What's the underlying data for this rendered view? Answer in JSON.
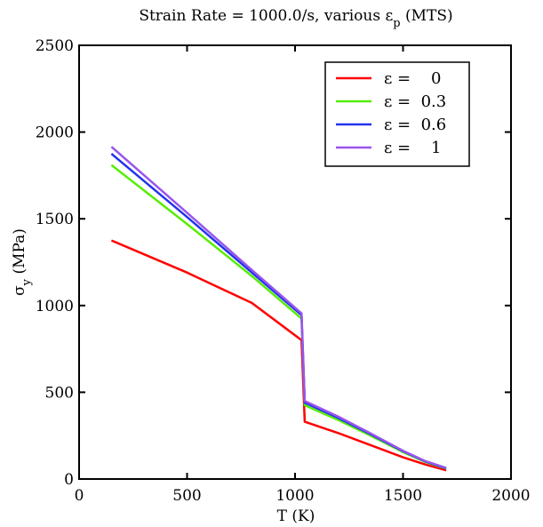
{
  "chart_data": {
    "type": "line",
    "title": {
      "main": "Strain Rate = 1000.0/s, various ε",
      "sub": "p",
      "suffix": " (MTS)"
    },
    "xlabel": "T (K)",
    "ylabel": {
      "main": "σ",
      "sub": "y",
      "suffix": " (MPa)"
    },
    "xlim": [
      0,
      2000
    ],
    "ylim": [
      0,
      2500
    ],
    "xticks": [
      {
        "value": 0,
        "label": "0"
      },
      {
        "value": 500,
        "label": "500"
      },
      {
        "value": 1000,
        "label": "1000"
      },
      {
        "value": 1500,
        "label": "1500"
      },
      {
        "value": 2000,
        "label": "2000"
      }
    ],
    "yticks": [
      {
        "value": 0,
        "label": "0"
      },
      {
        "value": 500,
        "label": "500"
      },
      {
        "value": 1000,
        "label": "1000"
      },
      {
        "value": 1500,
        "label": "1500"
      },
      {
        "value": 2000,
        "label": "2000"
      },
      {
        "value": 2500,
        "label": "2500"
      }
    ],
    "grid": false,
    "legend_position": "top-right",
    "series": [
      {
        "name": "ε =    0",
        "color": "#ff0000",
        "points": [
          [
            150,
            1375
          ],
          [
            500,
            1190
          ],
          [
            800,
            1015
          ],
          [
            1030,
            800
          ],
          [
            1045,
            330
          ],
          [
            1200,
            265
          ],
          [
            1350,
            195
          ],
          [
            1500,
            125
          ],
          [
            1600,
            85
          ],
          [
            1700,
            50
          ]
        ]
      },
      {
        "name": "ε =  0.3",
        "color": "#55ee00",
        "points": [
          [
            150,
            1810
          ],
          [
            500,
            1470
          ],
          [
            800,
            1170
          ],
          [
            1030,
            925
          ],
          [
            1045,
            425
          ],
          [
            1200,
            340
          ],
          [
            1350,
            250
          ],
          [
            1500,
            155
          ],
          [
            1600,
            100
          ],
          [
            1700,
            60
          ]
        ]
      },
      {
        "name": "ε =  0.6",
        "color": "#2233ee",
        "points": [
          [
            150,
            1875
          ],
          [
            500,
            1510
          ],
          [
            800,
            1190
          ],
          [
            1030,
            945
          ],
          [
            1045,
            440
          ],
          [
            1200,
            352
          ],
          [
            1350,
            258
          ],
          [
            1500,
            160
          ],
          [
            1600,
            103
          ],
          [
            1700,
            62
          ]
        ]
      },
      {
        "name": "ε =    1",
        "color": "#9955ee",
        "points": [
          [
            150,
            1915
          ],
          [
            500,
            1535
          ],
          [
            800,
            1205
          ],
          [
            1030,
            955
          ],
          [
            1045,
            450
          ],
          [
            1200,
            360
          ],
          [
            1350,
            263
          ],
          [
            1500,
            163
          ],
          [
            1600,
            105
          ],
          [
            1700,
            64
          ]
        ]
      }
    ]
  }
}
